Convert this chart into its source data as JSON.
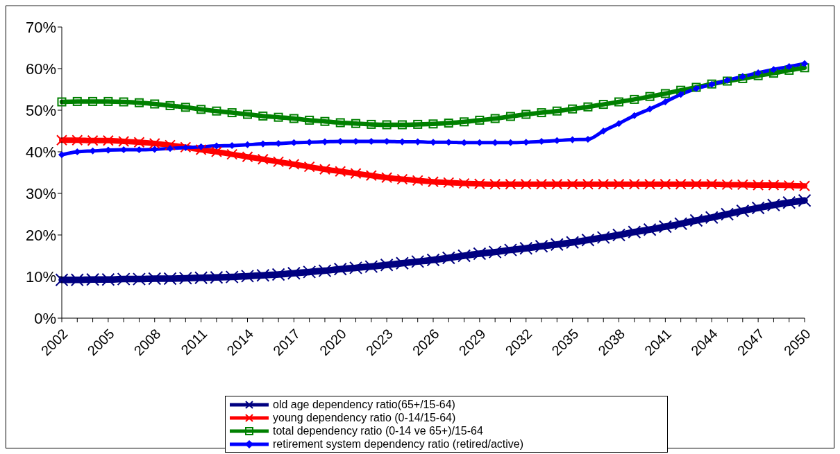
{
  "chart_data": {
    "type": "line",
    "categories": [
      "2002",
      null,
      null,
      "2005",
      null,
      null,
      "2008",
      null,
      null,
      "2011",
      null,
      null,
      "2014",
      null,
      null,
      "2017",
      null,
      null,
      "2020",
      null,
      null,
      "2023",
      null,
      null,
      "2026",
      null,
      null,
      "2029",
      null,
      null,
      "2032",
      null,
      null,
      "2035",
      null,
      null,
      "2038",
      null,
      null,
      "2041",
      null,
      null,
      "2044",
      null,
      null,
      "2047",
      null,
      null,
      "2050"
    ],
    "series": [
      {
        "name": "old age dependency ratio(65+/15-64)",
        "color": "#000080",
        "marker": "cross",
        "values": [
          9.2,
          9.2,
          9.3,
          9.3,
          9.4,
          9.4,
          9.5,
          9.5,
          9.6,
          9.7,
          9.8,
          9.9,
          10.1,
          10.3,
          10.5,
          10.8,
          11.1,
          11.4,
          11.8,
          12.1,
          12.4,
          12.8,
          13.2,
          13.6,
          14.0,
          14.5,
          15.0,
          15.5,
          15.9,
          16.4,
          16.8,
          17.3,
          17.7,
          18.2,
          18.8,
          19.4,
          20.0,
          20.7,
          21.3,
          22.0,
          22.7,
          23.5,
          24.2,
          25.0,
          25.8,
          26.5,
          27.2,
          27.8,
          28.3
        ]
      },
      {
        "name": "young dependency ratio (0-14/15-64)",
        "color": "#ff0000",
        "marker": "cross",
        "values": [
          42.8,
          42.8,
          42.7,
          42.7,
          42.5,
          42.3,
          42.0,
          41.6,
          41.1,
          40.5,
          40.0,
          39.4,
          38.8,
          38.2,
          37.6,
          37.0,
          36.4,
          35.8,
          35.3,
          34.8,
          34.3,
          33.8,
          33.4,
          33.1,
          32.8,
          32.6,
          32.4,
          32.3,
          32.2,
          32.2,
          32.2,
          32.2,
          32.2,
          32.2,
          32.2,
          32.2,
          32.2,
          32.2,
          32.2,
          32.2,
          32.2,
          32.2,
          32.2,
          32.1,
          32.1,
          32.0,
          32.0,
          31.9,
          31.8
        ]
      },
      {
        "name": "total dependency ratio (0-14 ve 65+)/15-64",
        "color": "#008000",
        "marker": "square",
        "values": [
          52.0,
          52.1,
          52.1,
          52.1,
          52.0,
          51.8,
          51.5,
          51.1,
          50.7,
          50.2,
          49.8,
          49.4,
          49.0,
          48.6,
          48.3,
          48.0,
          47.6,
          47.3,
          47.0,
          46.8,
          46.6,
          46.5,
          46.5,
          46.6,
          46.7,
          46.9,
          47.2,
          47.6,
          48.0,
          48.5,
          49.0,
          49.4,
          49.8,
          50.3,
          50.8,
          51.4,
          52.0,
          52.6,
          53.3,
          54.0,
          54.8,
          55.5,
          56.3,
          57.0,
          57.6,
          58.3,
          58.9,
          59.6,
          60.2
        ]
      },
      {
        "name": "retirement system dependency ratio (retired/active)",
        "color": "#0000ff",
        "marker": "diamond",
        "values": [
          39.3,
          40.0,
          40.2,
          40.4,
          40.5,
          40.5,
          40.6,
          40.8,
          41.0,
          41.2,
          41.4,
          41.5,
          41.7,
          41.9,
          42.0,
          42.2,
          42.3,
          42.4,
          42.5,
          42.5,
          42.5,
          42.5,
          42.4,
          42.4,
          42.3,
          42.3,
          42.2,
          42.2,
          42.2,
          42.2,
          42.3,
          42.5,
          42.7,
          42.9,
          43.0,
          45.0,
          46.8,
          48.7,
          50.3,
          52.0,
          53.8,
          55.2,
          56.2,
          57.2,
          58.1,
          59.0,
          59.8,
          60.5,
          61.2
        ]
      }
    ],
    "ylim": [
      0,
      70
    ],
    "yticks": [
      {
        "value": 0,
        "label": "0%"
      },
      {
        "value": 10,
        "label": "10%"
      },
      {
        "value": 20,
        "label": "20%"
      },
      {
        "value": 30,
        "label": "30%"
      },
      {
        "value": 40,
        "label": "40%"
      },
      {
        "value": 50,
        "label": "50%"
      },
      {
        "value": 60,
        "label": "60%"
      },
      {
        "value": 70,
        "label": "70%"
      }
    ],
    "grid": false,
    "legend": "bottom",
    "line_style": "solid"
  }
}
